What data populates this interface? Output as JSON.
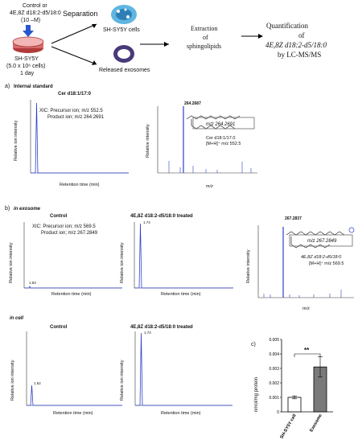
{
  "workflow": {
    "treatment": "Control or",
    "treatment2": "4E,8Z d18:2-d5/18:0",
    "concentration": "(10 –M)",
    "cell_line": "SH-SY5Y",
    "cell_count": "(5.0 x 10⁶ cells)",
    "duration": "1 day",
    "separation": "Separation",
    "sh_cells": "SH-SY5Y cells",
    "exosomes": "Released exosomes",
    "extraction_1": "Extraction",
    "extraction_2": "of",
    "extraction_3": "sphingolipids",
    "quant_1": "Quantification",
    "quant_2": "of",
    "quant_3": "4E,8Z d18:2-d5/18:0",
    "quant_4": "by LC-MS/MS"
  },
  "panel_a": {
    "letter": "a)",
    "heading": "Internal standard",
    "title": "Cer d18:1/17:0",
    "xic_1": "XIC: Precursor ion; m/z 552.5",
    "xic_2": "Product ion; m/z 264.2691",
    "peak_label": "264.2687",
    "mz_box": "m/z 264.2691",
    "compound": "Cer d18:1/17.0",
    "adduct": "[M+H]⁺ m/z 552.5"
  },
  "panel_b": {
    "letter": "b)",
    "heading_exo": "in exosome",
    "heading_cell": "in cell",
    "control": "Control",
    "treated": "4E,8Z d18:2-d5/18:0 treated",
    "xic_1": "XIC: Precursor ion; m/z 569.5",
    "xic_2": "Product ion; m/z 267.2849",
    "peak_label": "267.2837",
    "mz_box": "m/z 267.2849",
    "compound": "4E,8Z d18:2-d5/18:0",
    "adduct": "[M+H]⁺ m/z 569.5",
    "peak_exo_ctrl": "1.63",
    "peak_exo_trt": "1.74",
    "peak_cell_ctrl": "1.62",
    "peak_cell_trt": "1.74"
  },
  "axes": {
    "y_ion": "Relative ion intensity",
    "y_int": "Relative intensity",
    "x_rt": "Retention time (min)",
    "x_mz": "m/z",
    "rt_ticks": [
      "0",
      "1",
      "2",
      "3",
      "4",
      "5",
      "6",
      "7",
      "8",
      "9",
      "10",
      "11",
      "12",
      "13",
      "14",
      "15"
    ],
    "mz_ticks": [
      "200",
      "300",
      "400",
      "500",
      "600"
    ]
  },
  "panel_c": {
    "letter": "c)",
    "significance": "**",
    "chart_data": {
      "type": "bar",
      "categories": [
        "SH-SY5Y cell",
        "Exosome"
      ],
      "values": [
        0.001,
        0.0031
      ],
      "errors": [
        0.0001,
        0.0007
      ],
      "ylabel": "nmol/mg protein",
      "ylim": [
        0,
        0.005
      ],
      "yticks": [
        "0",
        "0.001",
        "0.002",
        "0.003",
        "0.004",
        "0.005"
      ],
      "colors": [
        "#ffffff",
        "#7a7a7a"
      ]
    }
  },
  "colors": {
    "trace": "#2c3fc9",
    "box": "#555555"
  }
}
